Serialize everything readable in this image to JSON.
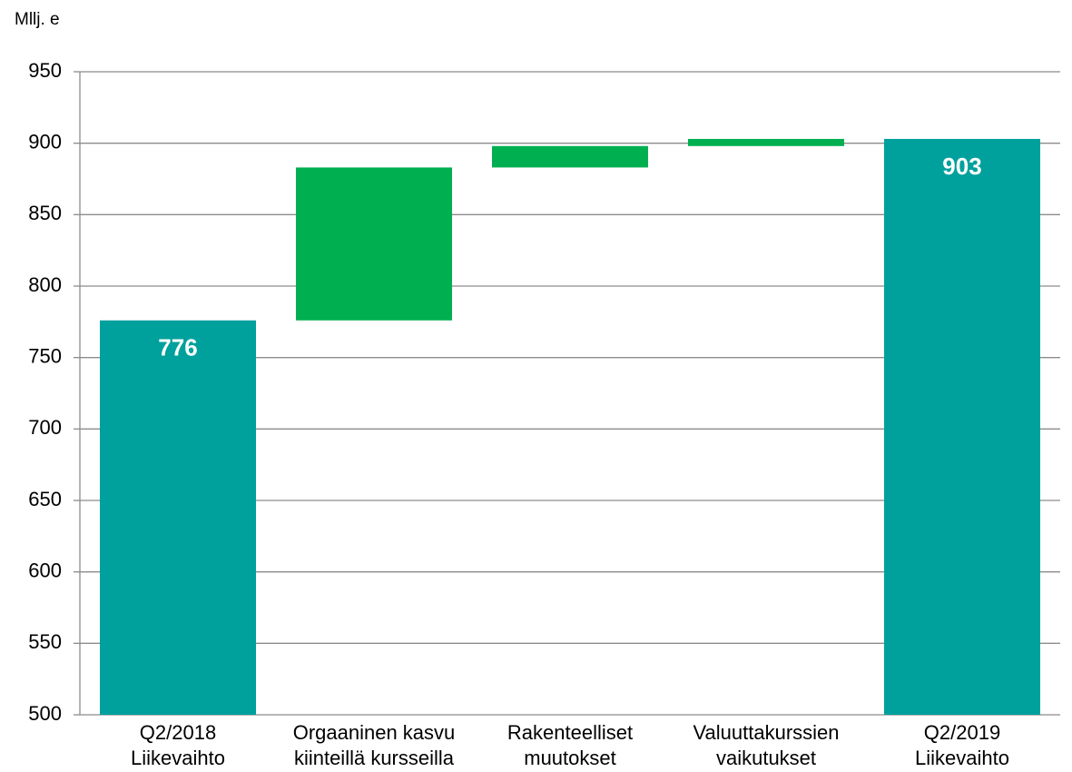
{
  "chart_data": {
    "type": "waterfall",
    "y_axis_label": "Mllj. e",
    "categories": [
      [
        "Q2/2018",
        "Liikevaihto"
      ],
      [
        "Orgaaninen kasvu",
        "kiinteillä kursseilla"
      ],
      [
        "Rakenteelliset",
        "muutokset"
      ],
      [
        "Valuuttakurssien",
        "vaikutukset"
      ],
      [
        "Q2/2019",
        "Liikevaihto"
      ]
    ],
    "values": [
      776,
      107,
      15,
      5,
      903
    ],
    "measure": [
      "total",
      "relative",
      "relative",
      "relative",
      "total"
    ],
    "total_color": "#00a09d",
    "increase_color": "#00b050",
    "ylim": [
      500,
      950
    ],
    "yticks": [
      500,
      550,
      600,
      650,
      700,
      750,
      800,
      850,
      900,
      950
    ],
    "grid": true
  }
}
